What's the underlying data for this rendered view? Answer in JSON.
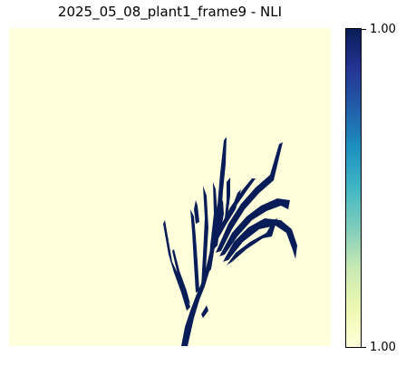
{
  "title": "2025_05_08_plant1_frame9 - NLI",
  "image": {
    "description_icon": "plant-silhouette",
    "background_color": "#ffffdc",
    "plant_color": "#081d58"
  },
  "colorbar": {
    "top_label": "1.00",
    "bottom_label": "1.00",
    "colormap": "YlGnBu",
    "gradient_colors": [
      "#081d58",
      "#253494",
      "#225ea8",
      "#1d91c0",
      "#41b6c4",
      "#7fcdbb",
      "#c7e9b4",
      "#edf8b1",
      "#ffffd9"
    ]
  }
}
